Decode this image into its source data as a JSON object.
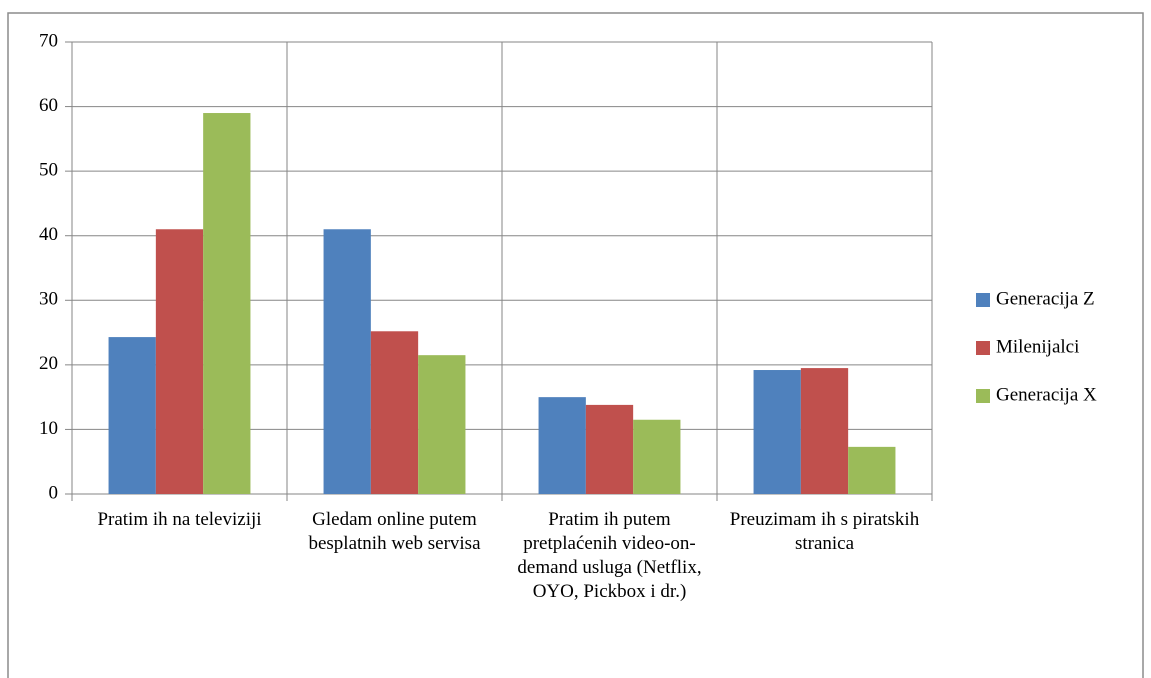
{
  "chart_data": {
    "type": "bar",
    "categories": [
      "Pratim ih na televiziji",
      "Gledam online putem besplatnih web servisa",
      "Pratim ih putem pretplaćenih video-on-demand usluga (Netflix, OYO, Pickbox i dr.)",
      "Preuzimam ih s piratskih stranica"
    ],
    "series": [
      {
        "name": "Generacija Z",
        "color": "#4f81bd",
        "values": [
          24.3,
          41.0,
          15.0,
          19.2
        ]
      },
      {
        "name": "Milenijalci",
        "color": "#c0504d",
        "values": [
          41.0,
          25.2,
          13.8,
          19.5
        ]
      },
      {
        "name": "Generacija X",
        "color": "#9bbb59",
        "values": [
          59.0,
          21.5,
          11.5,
          7.3
        ]
      }
    ],
    "ylim": [
      0,
      70
    ],
    "yticks": [
      0,
      10,
      20,
      30,
      40,
      50,
      60,
      70
    ],
    "grid": true,
    "legend": "right"
  }
}
